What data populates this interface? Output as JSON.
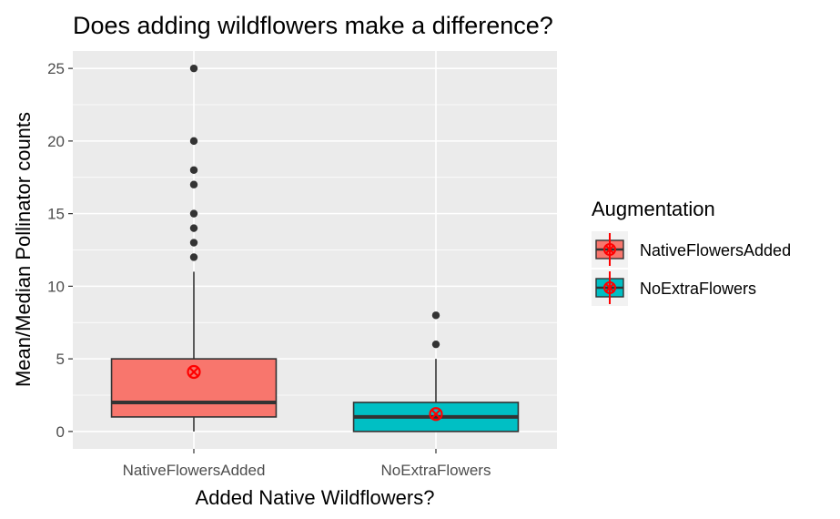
{
  "chart_data": {
    "type": "box",
    "title": "Does adding wildflowers make a difference?",
    "xlabel": "Added Native Wildflowers?",
    "ylabel": "Mean/Median Pollinator counts",
    "ylim": [
      -1.2,
      26.2
    ],
    "yticks": [
      0,
      5,
      10,
      15,
      20,
      25
    ],
    "grid": true,
    "legend": {
      "title": "Augmentation",
      "position": "right",
      "entries": [
        "NativeFlowersAdded",
        "NoExtraFlowers"
      ]
    },
    "categories": [
      "NativeFlowersAdded",
      "NoExtraFlowers"
    ],
    "boxes": [
      {
        "category": "NativeFlowersAdded",
        "min": 0,
        "q1": 1,
        "median": 2,
        "q3": 5,
        "max": 11,
        "outliers": [
          12,
          13,
          14,
          15,
          17,
          18,
          20,
          25
        ],
        "mean": 4.1,
        "color": "#F8766D"
      },
      {
        "category": "NoExtraFlowers",
        "min": 0,
        "q1": 0,
        "median": 1,
        "q3": 2,
        "max": 5,
        "outliers": [
          6,
          8
        ],
        "mean": 1.2,
        "color": "#00BFC4"
      }
    ],
    "mean_marker_color": "#FF0000",
    "panel_color": "#EBEBEB"
  }
}
